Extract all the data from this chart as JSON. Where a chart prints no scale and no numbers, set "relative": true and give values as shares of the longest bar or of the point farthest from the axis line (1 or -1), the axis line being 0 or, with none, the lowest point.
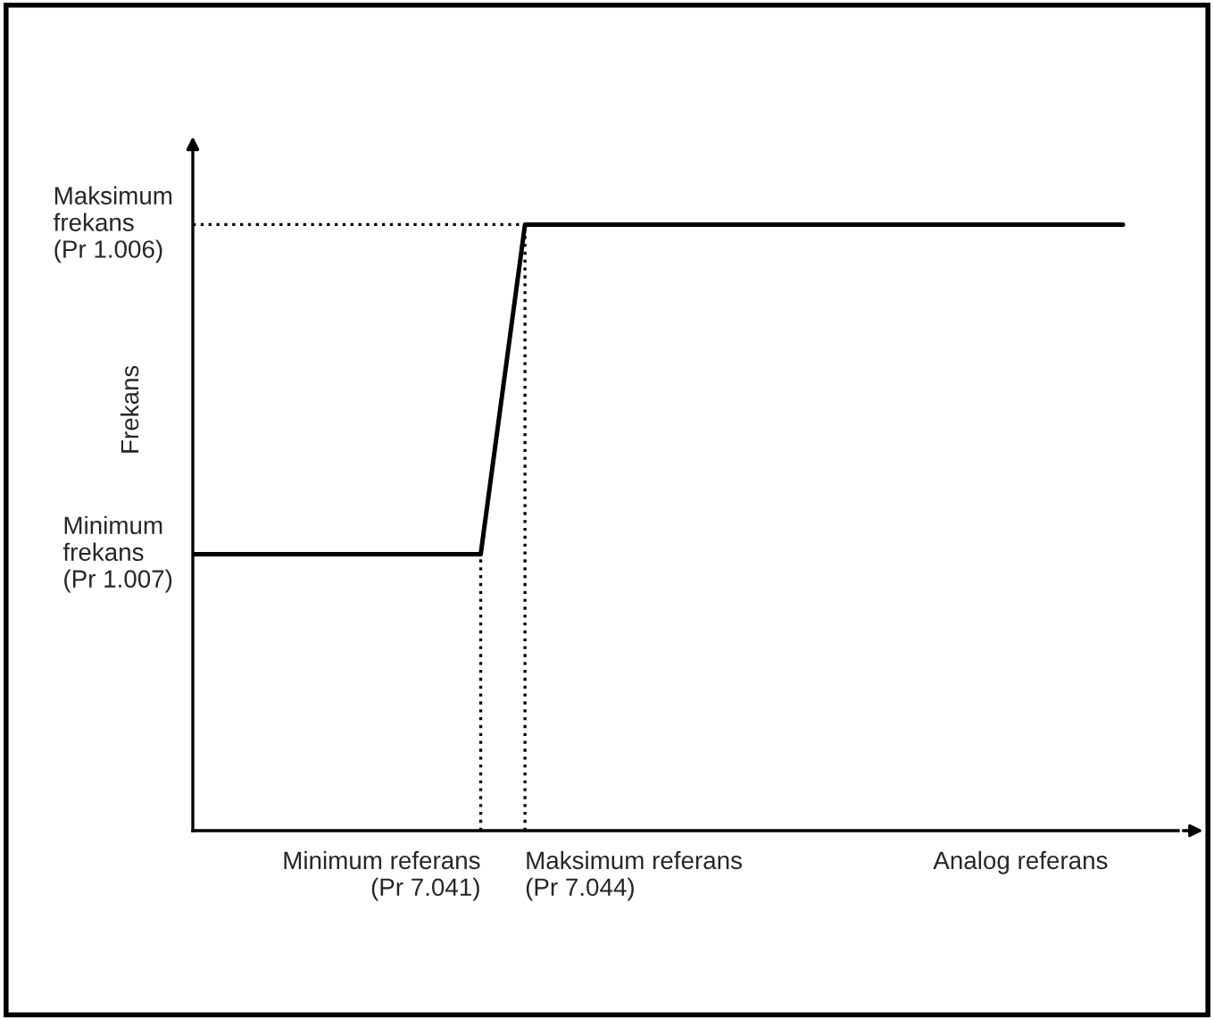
{
  "chart_data": {
    "type": "line",
    "relative": true,
    "xlabel": "Analog referans",
    "ylabel": "Frekans",
    "categories": [
      null,
      null,
      null,
      null,
      null,
      null,
      null,
      null,
      null,
      null,
      null,
      null,
      null,
      null,
      null,
      null,
      null,
      null,
      null,
      null,
      null,
      null,
      null,
      null,
      null,
      null,
      null,
      null,
      null,
      null,
      null,
      null,
      null,
      null,
      null,
      null,
      null,
      null,
      null,
      null,
      null,
      null,
      null
    ],
    "series": [
      {
        "color": "#000000",
        "values": [
          0.456,
          0.456,
          0.456,
          0.456,
          0.456,
          0.456,
          0.456,
          0.456,
          0.456,
          0.456,
          0.456,
          0.456,
          0.456,
          0.456,
          0.728,
          1,
          1,
          1,
          1,
          1,
          1,
          1,
          1,
          1,
          1,
          1,
          1,
          1,
          1,
          1,
          1,
          1,
          1,
          1,
          1,
          1,
          1,
          1,
          1,
          1,
          1,
          1,
          1
        ]
      }
    ],
    "annotations": [
      "Maksimum\nfrekans\n(Pr 1.006)",
      "Minimum\nfrekans\n(Pr 1.007)",
      "Minimum referans\n(Pr 7.041)",
      "Maksimum referans\n(Pr 7.044)"
    ],
    "ref_lines": [
      {
        "axis": "y",
        "value": 1,
        "line_style": "dotted"
      }
    ],
    "grid": false,
    "legend": false,
    "marker": "none",
    "line_style": "solid"
  }
}
